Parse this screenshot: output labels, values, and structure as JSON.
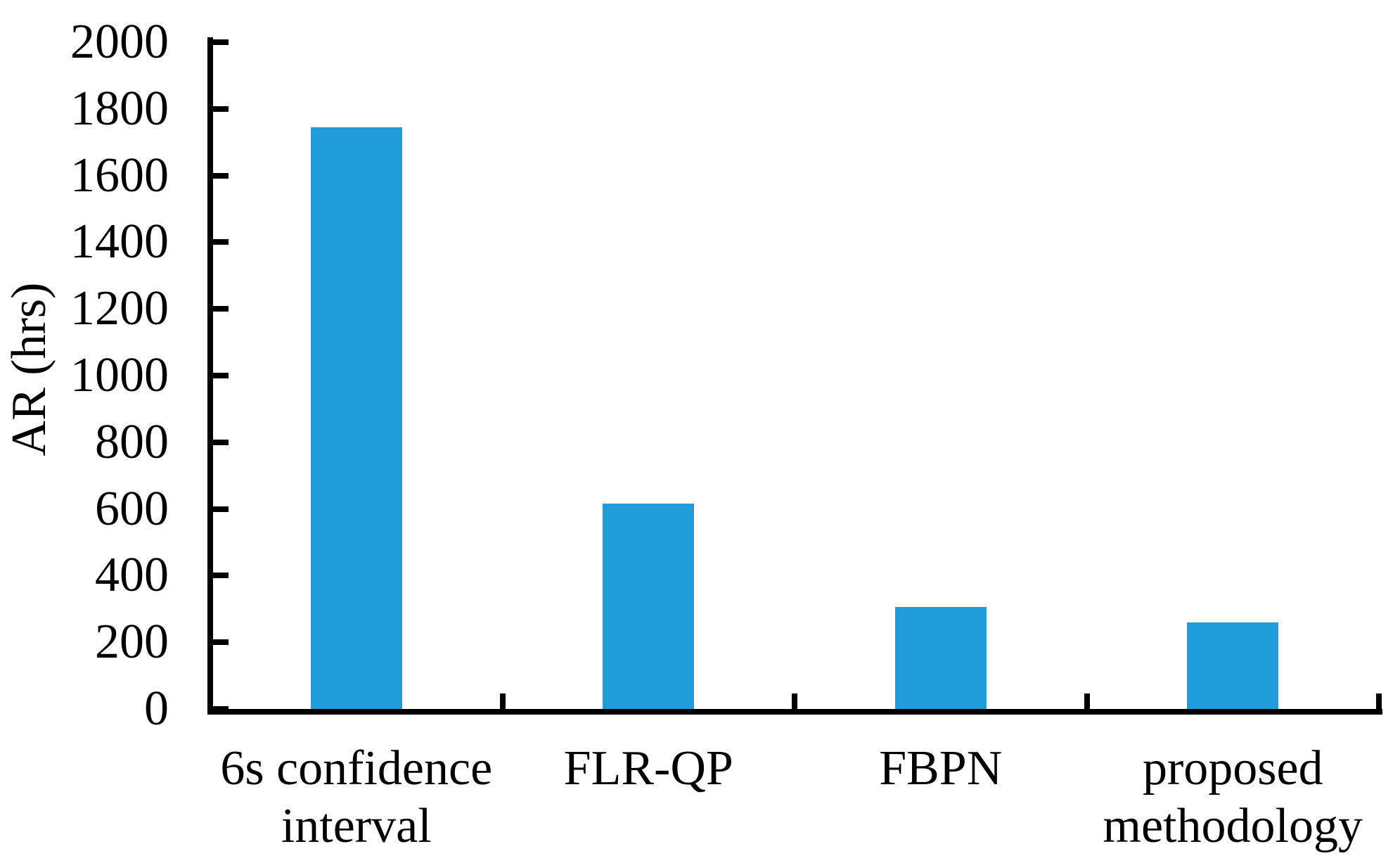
{
  "chart_data": {
    "type": "bar",
    "title": "",
    "ylabel": "AR (hrs)",
    "xlabel": "",
    "categories": [
      "6s confidence\ninterval",
      "FLR-QP",
      "FBPN",
      "proposed\nmethodology"
    ],
    "values": [
      1745,
      615,
      305,
      260
    ],
    "ylim": [
      0,
      2000
    ],
    "yticks": [
      0,
      200,
      400,
      600,
      800,
      1000,
      1200,
      1400,
      1600,
      1800,
      2000
    ],
    "grid": false,
    "legend": "none",
    "bar_color": "#1F9CD9",
    "axis_color": "#000000",
    "background_color": "#FFFFFF"
  }
}
